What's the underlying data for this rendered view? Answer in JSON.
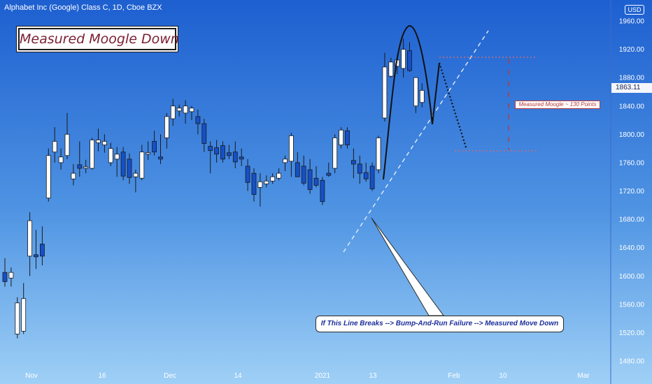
{
  "header": {
    "title": "Alphabet Inc (Google) Class C, 1D, Cboe BZX"
  },
  "badge": {
    "text": "Measured Moogle Down"
  },
  "note": {
    "text": "Measured Moogle ~ 130 Points"
  },
  "callout": {
    "text": "If This Line Breaks --> Bump-And-Run Failure --> Measured Move Down"
  },
  "currency": {
    "text": "USD"
  },
  "price_label": {
    "text": "1863.11"
  },
  "colors": {
    "up": "#ffffff",
    "down": "#1550c8",
    "wick": "#1a1a1a",
    "trendline": "#e4edfb",
    "target_line": "#e06b6b",
    "measure_line": "#b73a3a"
  },
  "chart_data": {
    "type": "candlestick",
    "title": "Alphabet Inc (Google) Class C, 1D, Cboe BZX",
    "subtitle": "Measured Moogle Down",
    "ylabel": "USD",
    "ylim": [
      1470,
      1970
    ],
    "yticks": [
      1480,
      1520,
      1560,
      1600,
      1640,
      1680,
      1720,
      1760,
      1800,
      1840,
      1880,
      1920,
      1960
    ],
    "xtick_labels": [
      "Nov",
      "16",
      "Dec",
      "14",
      "2021",
      "13",
      "Feb",
      "10",
      "Mar"
    ],
    "last_price": 1863.11,
    "candles": [
      {
        "o": 1605,
        "h": 1625,
        "l": 1585,
        "c": 1592
      },
      {
        "o": 1597,
        "h": 1612,
        "l": 1585,
        "c": 1605
      },
      {
        "o": 1518,
        "h": 1570,
        "l": 1512,
        "c": 1562
      },
      {
        "o": 1522,
        "h": 1590,
        "l": 1518,
        "c": 1568
      },
      {
        "o": 1628,
        "h": 1690,
        "l": 1600,
        "c": 1678
      },
      {
        "o": 1630,
        "h": 1665,
        "l": 1610,
        "c": 1627
      },
      {
        "o": 1645,
        "h": 1670,
        "l": 1615,
        "c": 1628
      },
      {
        "o": 1710,
        "h": 1780,
        "l": 1705,
        "c": 1770
      },
      {
        "o": 1775,
        "h": 1810,
        "l": 1760,
        "c": 1790
      },
      {
        "o": 1760,
        "h": 1780,
        "l": 1750,
        "c": 1768
      },
      {
        "o": 1770,
        "h": 1830,
        "l": 1765,
        "c": 1800
      },
      {
        "o": 1737,
        "h": 1758,
        "l": 1728,
        "c": 1745
      },
      {
        "o": 1757,
        "h": 1790,
        "l": 1740,
        "c": 1752
      },
      {
        "o": 1752,
        "h": 1764,
        "l": 1745,
        "c": 1754
      },
      {
        "o": 1752,
        "h": 1795,
        "l": 1750,
        "c": 1792
      },
      {
        "o": 1788,
        "h": 1808,
        "l": 1776,
        "c": 1792
      },
      {
        "o": 1785,
        "h": 1800,
        "l": 1774,
        "c": 1790
      },
      {
        "o": 1760,
        "h": 1788,
        "l": 1755,
        "c": 1780
      },
      {
        "o": 1765,
        "h": 1782,
        "l": 1740,
        "c": 1772
      },
      {
        "o": 1775,
        "h": 1782,
        "l": 1735,
        "c": 1741
      },
      {
        "o": 1765,
        "h": 1773,
        "l": 1730,
        "c": 1739
      },
      {
        "o": 1740,
        "h": 1750,
        "l": 1718,
        "c": 1745
      },
      {
        "o": 1738,
        "h": 1785,
        "l": 1735,
        "c": 1775
      },
      {
        "o": 1772,
        "h": 1790,
        "l": 1764,
        "c": 1774
      },
      {
        "o": 1790,
        "h": 1805,
        "l": 1770,
        "c": 1775
      },
      {
        "o": 1768,
        "h": 1800,
        "l": 1758,
        "c": 1765
      },
      {
        "o": 1795,
        "h": 1830,
        "l": 1780,
        "c": 1825
      },
      {
        "o": 1822,
        "h": 1850,
        "l": 1812,
        "c": 1840
      },
      {
        "o": 1833,
        "h": 1842,
        "l": 1825,
        "c": 1837
      },
      {
        "o": 1830,
        "h": 1848,
        "l": 1815,
        "c": 1840
      },
      {
        "o": 1832,
        "h": 1840,
        "l": 1820,
        "c": 1837
      },
      {
        "o": 1825,
        "h": 1835,
        "l": 1800,
        "c": 1815
      },
      {
        "o": 1815,
        "h": 1822,
        "l": 1775,
        "c": 1787
      },
      {
        "o": 1783,
        "h": 1790,
        "l": 1745,
        "c": 1777
      },
      {
        "o": 1781,
        "h": 1792,
        "l": 1760,
        "c": 1772
      },
      {
        "o": 1784,
        "h": 1790,
        "l": 1760,
        "c": 1765
      },
      {
        "o": 1774,
        "h": 1785,
        "l": 1765,
        "c": 1770
      },
      {
        "o": 1775,
        "h": 1790,
        "l": 1752,
        "c": 1761
      },
      {
        "o": 1768,
        "h": 1780,
        "l": 1755,
        "c": 1765
      },
      {
        "o": 1755,
        "h": 1765,
        "l": 1720,
        "c": 1732
      },
      {
        "o": 1745,
        "h": 1752,
        "l": 1705,
        "c": 1715
      },
      {
        "o": 1725,
        "h": 1745,
        "l": 1698,
        "c": 1733
      },
      {
        "o": 1730,
        "h": 1742,
        "l": 1725,
        "c": 1734
      },
      {
        "o": 1734,
        "h": 1745,
        "l": 1730,
        "c": 1740
      },
      {
        "o": 1738,
        "h": 1752,
        "l": 1735,
        "c": 1745
      },
      {
        "o": 1760,
        "h": 1770,
        "l": 1748,
        "c": 1765
      },
      {
        "o": 1762,
        "h": 1802,
        "l": 1740,
        "c": 1798
      },
      {
        "o": 1760,
        "h": 1775,
        "l": 1740,
        "c": 1740
      },
      {
        "o": 1755,
        "h": 1770,
        "l": 1728,
        "c": 1731
      },
      {
        "o": 1750,
        "h": 1765,
        "l": 1716,
        "c": 1722
      },
      {
        "o": 1738,
        "h": 1755,
        "l": 1725,
        "c": 1728
      },
      {
        "o": 1735,
        "h": 1740,
        "l": 1700,
        "c": 1705
      },
      {
        "o": 1745,
        "h": 1760,
        "l": 1740,
        "c": 1742
      },
      {
        "o": 1752,
        "h": 1800,
        "l": 1745,
        "c": 1795
      },
      {
        "o": 1785,
        "h": 1810,
        "l": 1780,
        "c": 1806
      },
      {
        "o": 1805,
        "h": 1810,
        "l": 1780,
        "c": 1785
      },
      {
        "o": 1763,
        "h": 1780,
        "l": 1738,
        "c": 1758
      },
      {
        "o": 1758,
        "h": 1770,
        "l": 1730,
        "c": 1745
      },
      {
        "o": 1746,
        "h": 1760,
        "l": 1733,
        "c": 1737
      },
      {
        "o": 1755,
        "h": 1760,
        "l": 1720,
        "c": 1723
      },
      {
        "o": 1750,
        "h": 1798,
        "l": 1745,
        "c": 1795
      },
      {
        "o": 1823,
        "h": 1915,
        "l": 1818,
        "c": 1895
      },
      {
        "o": 1882,
        "h": 1908,
        "l": 1880,
        "c": 1902
      },
      {
        "o": 1896,
        "h": 1912,
        "l": 1885,
        "c": 1905
      },
      {
        "o": 1893,
        "h": 1935,
        "l": 1880,
        "c": 1920
      },
      {
        "o": 1918,
        "h": 1930,
        "l": 1888,
        "c": 1890
      },
      {
        "o": 1840,
        "h": 1880,
        "l": 1830,
        "c": 1880
      },
      {
        "o": 1845,
        "h": 1872,
        "l": 1838,
        "c": 1862
      }
    ],
    "annotations": [
      {
        "text": "Measured Moogle Down"
      },
      {
        "text": "Measured Moogle ~ 130 Points"
      },
      {
        "text": "If This Line Breaks --> Bump-And-Run Failure --> Measured Move Down"
      }
    ]
  }
}
